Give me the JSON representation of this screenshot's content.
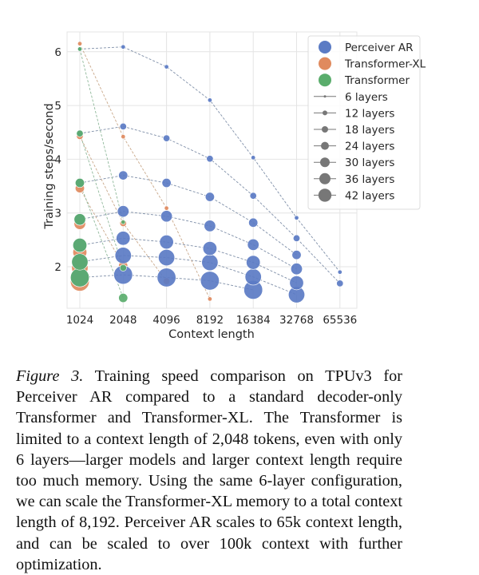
{
  "chart_data": {
    "type": "scatter",
    "xlabel": "Context length",
    "ylabel": "Training steps/second",
    "x_categories": [
      "1024",
      "2048",
      "4096",
      "8192",
      "16384",
      "32768",
      "65536"
    ],
    "y_ticks": [
      2,
      3,
      4,
      5,
      6
    ],
    "ylim": [
      1.3,
      6.35
    ],
    "grid": true,
    "legend_placement": "top-right",
    "colors": {
      "Perceiver AR": "#5b7bc4",
      "Transformer-XL": "#e08a5e",
      "Transformer": "#5aad6c",
      "line": "#8a9aaa"
    },
    "legend_models": [
      "Perceiver AR",
      "Transformer-XL",
      "Transformer"
    ],
    "legend_layers": [
      "6 layers",
      "12 layers",
      "18 layers",
      "24 layers",
      "30 layers",
      "36 layers",
      "42 layers"
    ],
    "layers": [
      6,
      12,
      18,
      24,
      30,
      36,
      42
    ],
    "series": [
      {
        "model": "Perceiver AR",
        "layers": 6,
        "points": [
          [
            "1024",
            6.05
          ],
          [
            "2048",
            6.09
          ],
          [
            "4096",
            5.72
          ],
          [
            "8192",
            5.1
          ],
          [
            "16384",
            4.03
          ],
          [
            "32768",
            2.91
          ],
          [
            "65536",
            1.9
          ]
        ]
      },
      {
        "model": "Perceiver AR",
        "layers": 12,
        "points": [
          [
            "1024",
            4.48
          ],
          [
            "2048",
            4.61
          ],
          [
            "4096",
            4.39
          ],
          [
            "8192",
            4.01
          ],
          [
            "16384",
            3.32
          ],
          [
            "32768",
            2.53
          ],
          [
            "65536",
            1.69
          ]
        ]
      },
      {
        "model": "Perceiver AR",
        "layers": 18,
        "points": [
          [
            "1024",
            3.56
          ],
          [
            "2048",
            3.7
          ],
          [
            "4096",
            3.56
          ],
          [
            "8192",
            3.3
          ],
          [
            "16384",
            2.82
          ],
          [
            "32768",
            2.22
          ]
        ]
      },
      {
        "model": "Perceiver AR",
        "layers": 24,
        "points": [
          [
            "1024",
            2.88
          ],
          [
            "2048",
            3.03
          ],
          [
            "4096",
            2.94
          ],
          [
            "8192",
            2.76
          ],
          [
            "16384",
            2.41
          ],
          [
            "32768",
            1.96
          ]
        ]
      },
      {
        "model": "Perceiver AR",
        "layers": 30,
        "points": [
          [
            "1024",
            2.4
          ],
          [
            "2048",
            2.53
          ],
          [
            "4096",
            2.46
          ],
          [
            "8192",
            2.34
          ],
          [
            "16384",
            2.08
          ],
          [
            "32768",
            1.7
          ]
        ]
      },
      {
        "model": "Perceiver AR",
        "layers": 36,
        "points": [
          [
            "1024",
            2.09
          ],
          [
            "2048",
            2.21
          ],
          [
            "4096",
            2.17
          ],
          [
            "8192",
            2.08
          ],
          [
            "16384",
            1.81
          ],
          [
            "32768",
            1.48
          ]
        ]
      },
      {
        "model": "Perceiver AR",
        "layers": 42,
        "points": [
          [
            "1024",
            1.8
          ],
          [
            "2048",
            1.85
          ],
          [
            "4096",
            1.8
          ],
          [
            "8192",
            1.74
          ],
          [
            "16384",
            1.57
          ]
        ]
      },
      {
        "model": "Transformer-XL",
        "layers": 6,
        "points": [
          [
            "1024",
            6.15
          ],
          [
            "2048",
            4.42
          ],
          [
            "4096",
            3.09
          ],
          [
            "8192",
            1.4
          ]
        ]
      },
      {
        "model": "Transformer-XL",
        "layers": 12,
        "points": [
          [
            "1024",
            4.43
          ],
          [
            "2048",
            2.81
          ],
          [
            "4096",
            1.73
          ]
        ]
      },
      {
        "model": "Transformer-XL",
        "layers": 18,
        "points": [
          [
            "1024",
            3.46
          ],
          [
            "2048",
            2.02
          ]
        ]
      },
      {
        "model": "Transformer-XL",
        "layers": 24,
        "points": [
          [
            "1024",
            2.8
          ]
        ]
      },
      {
        "model": "Transformer-XL",
        "layers": 30,
        "points": [
          [
            "1024",
            2.27
          ]
        ]
      },
      {
        "model": "Transformer-XL",
        "layers": 36,
        "points": [
          [
            "1024",
            1.98
          ]
        ]
      },
      {
        "model": "Transformer-XL",
        "layers": 42,
        "points": [
          [
            "1024",
            1.72
          ]
        ]
      },
      {
        "model": "Transformer",
        "layers": 6,
        "points": [
          [
            "1024",
            6.05
          ],
          [
            "2048",
            2.83
          ]
        ]
      },
      {
        "model": "Transformer",
        "layers": 12,
        "points": [
          [
            "1024",
            4.48
          ],
          [
            "2048",
            1.98
          ]
        ]
      },
      {
        "model": "Transformer",
        "layers": 18,
        "points": [
          [
            "1024",
            3.56
          ],
          [
            "2048",
            1.42
          ]
        ]
      },
      {
        "model": "Transformer",
        "layers": 24,
        "points": [
          [
            "1024",
            2.88
          ]
        ]
      },
      {
        "model": "Transformer",
        "layers": 30,
        "points": [
          [
            "1024",
            2.4
          ]
        ]
      },
      {
        "model": "Transformer",
        "layers": 36,
        "points": [
          [
            "1024",
            2.09
          ]
        ]
      },
      {
        "model": "Transformer",
        "layers": 42,
        "points": [
          [
            "1024",
            1.8
          ]
        ]
      }
    ]
  },
  "caption": {
    "label": "Figure 3.",
    "text": " Training speed comparison on TPUv3 for Perceiver AR compared to a standard decoder-only Transformer and Transformer-XL. The Transformer is limited to a context length of 2,048 tokens, even with only 6 layers—larger models and larger context length require too much memory. Using the same 6-layer configuration, we can scale the Transformer-XL memory to a total context length of 8,192. Perceiver AR scales to 65k context length, and can be scaled to over 100k context with further optimization."
  }
}
